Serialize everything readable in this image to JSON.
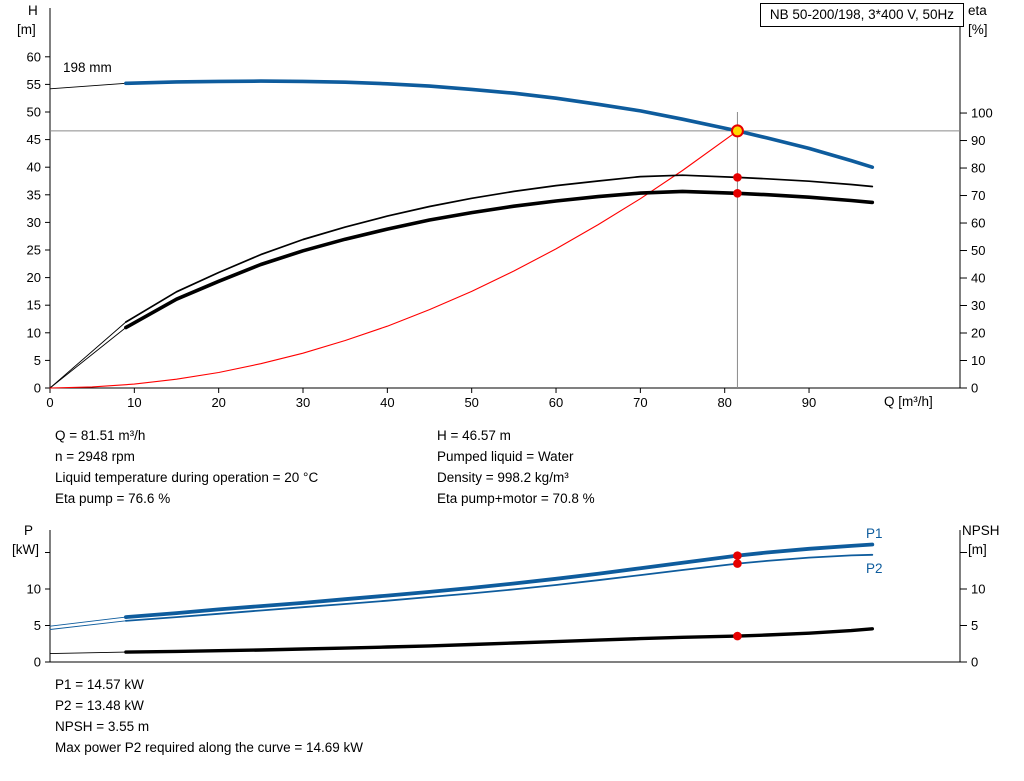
{
  "title_box": "NB 50-200/198, 3*400 V, 50Hz",
  "axes": {
    "h": "H",
    "h_unit": "[m]",
    "eta": "eta",
    "eta_unit": "[%]",
    "q": "Q [m³/h]",
    "p": "P",
    "p_unit": "[kW]",
    "npsh": "NPSH",
    "npsh_unit": "[m]"
  },
  "top_chart": {
    "impeller_label": "198 mm"
  },
  "bottom_chart": {
    "p1_label": "P1",
    "p2_label": "P2"
  },
  "info": {
    "left": [
      "Q = 81.51 m³/h",
      "n = 2948 rpm",
      "Liquid temperature during operation = 20 °C",
      "Eta pump = 76.6 %"
    ],
    "right": [
      "H = 46.57 m",
      "Pumped liquid = Water",
      "Density = 998.2 kg/m³",
      "Eta pump+motor = 70.8 %"
    ]
  },
  "results": [
    "P1 = 14.57 kW",
    "P2 = 13.48 kW",
    "NPSH = 3.55 m",
    "Max power P2 required along the curve = 14.69 kW"
  ],
  "colors": {
    "curve_blue": "#0e5c9d",
    "curve_black": "#000000",
    "system_red": "#ff0000",
    "dot_red": "#e60000",
    "duty_yellow": "#ffd800",
    "crosshair_gray": "#8a8a8a"
  },
  "chart_data": [
    {
      "type": "line",
      "title": "NB 50-200/198, 3*400 V, 50Hz",
      "xlabel": "Q [m³/h]",
      "ylabel_left": "H [m]",
      "ylabel_right": "eta [%]",
      "xlim": [
        0,
        107.9
      ],
      "ylim_left": [
        0,
        68.84
      ],
      "ylim_right": [
        0,
        138.2
      ],
      "x_ticks": [
        0,
        10,
        20,
        30,
        40,
        50,
        60,
        70,
        80,
        90
      ],
      "left_ticks": [
        0,
        5,
        10,
        15,
        20,
        25,
        30,
        35,
        40,
        45,
        50,
        55,
        60
      ],
      "right_ticks": [
        0,
        10,
        20,
        30,
        40,
        50,
        60,
        70,
        80,
        90,
        100
      ],
      "grid": false,
      "crosshair": {
        "x": 81.51,
        "x_top": 50.0,
        "h": 46.57,
        "color": "#8a8a8a"
      },
      "series": [
        {
          "name": "head-curve-leader",
          "axis": "left",
          "color": "#000000",
          "width": 0.9,
          "points": [
            [
              0,
              54.2
            ],
            [
              9,
              55.2
            ]
          ]
        },
        {
          "name": "eta-pump-leader",
          "axis": "right",
          "color": "#000000",
          "width": 0.9,
          "points": [
            [
              0,
              0
            ],
            [
              9,
              24
            ]
          ]
        },
        {
          "name": "eta-pump-motor-leader",
          "axis": "right",
          "color": "#000000",
          "width": 0.9,
          "points": [
            [
              0,
              0
            ],
            [
              9,
              22
            ]
          ]
        },
        {
          "name": "system-curve",
          "axis": "left",
          "color": "#ff0000",
          "width": 1.1,
          "points": [
            [
              0,
              0
            ],
            [
              5,
              0.2
            ],
            [
              10,
              0.7
            ],
            [
              15,
              1.6
            ],
            [
              20,
              2.8
            ],
            [
              25,
              4.4
            ],
            [
              30,
              6.3
            ],
            [
              35,
              8.6
            ],
            [
              40,
              11.2
            ],
            [
              45,
              14.2
            ],
            [
              50,
              17.5
            ],
            [
              55,
              21.2
            ],
            [
              60,
              25.2
            ],
            [
              65,
              29.6
            ],
            [
              70,
              34.3
            ],
            [
              75,
              39.4
            ],
            [
              81.51,
              46.57
            ]
          ]
        },
        {
          "name": "head-curve-198mm",
          "axis": "left",
          "color": "#0e5c9d",
          "width": 3.6,
          "points": [
            [
              9,
              55.2
            ],
            [
              15,
              55.45
            ],
            [
              20,
              55.55
            ],
            [
              25,
              55.6
            ],
            [
              30,
              55.55
            ],
            [
              35,
              55.4
            ],
            [
              40,
              55.1
            ],
            [
              45,
              54.7
            ],
            [
              50,
              54.1
            ],
            [
              55,
              53.4
            ],
            [
              60,
              52.5
            ],
            [
              65,
              51.4
            ],
            [
              70,
              50.2
            ],
            [
              75,
              48.7
            ],
            [
              81.51,
              46.57
            ],
            [
              85,
              45.3
            ],
            [
              90,
              43.4
            ],
            [
              95,
              41.2
            ],
            [
              97.5,
              40.0
            ]
          ]
        },
        {
          "name": "eta-pump-curve",
          "axis": "right",
          "color": "#000000",
          "width": 1.7,
          "points": [
            [
              9,
              24
            ],
            [
              15,
              35
            ],
            [
              20,
              42
            ],
            [
              25,
              48.5
            ],
            [
              30,
              54
            ],
            [
              35,
              58.5
            ],
            [
              40,
              62.5
            ],
            [
              45,
              66
            ],
            [
              50,
              69
            ],
            [
              55,
              71.5
            ],
            [
              60,
              73.6
            ],
            [
              65,
              75.3
            ],
            [
              70,
              76.9
            ],
            [
              75,
              77.4
            ],
            [
              81.51,
              76.6
            ],
            [
              85,
              76.1
            ],
            [
              90,
              75.2
            ],
            [
              95,
              74.0
            ],
            [
              97.5,
              73.3
            ]
          ]
        },
        {
          "name": "eta-pump-motor-curve",
          "axis": "right",
          "color": "#000000",
          "width": 3.6,
          "points": [
            [
              9,
              22
            ],
            [
              15,
              32.3
            ],
            [
              20,
              38.8
            ],
            [
              25,
              44.9
            ],
            [
              30,
              49.9
            ],
            [
              35,
              54.1
            ],
            [
              40,
              57.8
            ],
            [
              45,
              61.1
            ],
            [
              50,
              63.8
            ],
            [
              55,
              66.1
            ],
            [
              60,
              68.0
            ],
            [
              65,
              69.6
            ],
            [
              70,
              70.9
            ],
            [
              75,
              71.5
            ],
            [
              81.51,
              70.8
            ],
            [
              85,
              70.3
            ],
            [
              90,
              69.4
            ],
            [
              95,
              68.2
            ],
            [
              97.5,
              67.5
            ]
          ]
        }
      ],
      "markers": [
        {
          "name": "eta-pump-operating-dot",
          "axis": "right",
          "q": 81.51,
          "v": 76.6,
          "r": 4.3,
          "fill": "#e60000"
        },
        {
          "name": "eta-pump-motor-operating-dot",
          "axis": "right",
          "q": 81.51,
          "v": 70.8,
          "r": 4.3,
          "fill": "#e60000"
        },
        {
          "name": "duty-point-marker",
          "axis": "left",
          "q": 81.51,
          "v": 46.57,
          "r": 5.5,
          "fill": "#ffd800",
          "stroke": "#e60000",
          "sw": 2
        }
      ]
    },
    {
      "type": "line",
      "title": "Power and NPSH curves",
      "xlabel": "Q [m³/h]",
      "ylabel_left": "P [kW]",
      "ylabel_right": "NPSH [m]",
      "xlim": [
        0,
        107.9
      ],
      "ylim_left": [
        0,
        18.08
      ],
      "ylim_right": [
        0,
        18.08
      ],
      "x_ticks": [],
      "left_ticks": [
        0,
        5,
        10,
        {
          "v": 15,
          "label": ""
        }
      ],
      "right_ticks": [
        0,
        5,
        10,
        {
          "v": 15,
          "label": ""
        }
      ],
      "grid": false,
      "series": [
        {
          "name": "p1-leader",
          "axis": "left",
          "color": "#0e5c9d",
          "width": 0.9,
          "points": [
            [
              0,
              4.9
            ],
            [
              9,
              6.15
            ]
          ]
        },
        {
          "name": "p2-leader",
          "axis": "left",
          "color": "#0e5c9d",
          "width": 0.9,
          "points": [
            [
              0,
              4.45
            ],
            [
              9,
              5.65
            ]
          ]
        },
        {
          "name": "npsh-leader",
          "axis": "right",
          "color": "#000000",
          "width": 0.9,
          "points": [
            [
              0,
              1.15
            ],
            [
              9,
              1.35
            ]
          ]
        },
        {
          "name": "p1-curve",
          "axis": "left",
          "color": "#0e5c9d",
          "width": 3.8,
          "points": [
            [
              9,
              6.15
            ],
            [
              15,
              6.7
            ],
            [
              20,
              7.2
            ],
            [
              25,
              7.65
            ],
            [
              30,
              8.1
            ],
            [
              35,
              8.6
            ],
            [
              40,
              9.1
            ],
            [
              45,
              9.6
            ],
            [
              50,
              10.15
            ],
            [
              55,
              10.75
            ],
            [
              60,
              11.4
            ],
            [
              65,
              12.1
            ],
            [
              70,
              12.85
            ],
            [
              75,
              13.6
            ],
            [
              81.51,
              14.57
            ],
            [
              85,
              15.0
            ],
            [
              90,
              15.5
            ],
            [
              95,
              15.9
            ],
            [
              97.5,
              16.1
            ]
          ]
        },
        {
          "name": "p2-curve",
          "axis": "left",
          "color": "#0e5c9d",
          "width": 1.8,
          "points": [
            [
              9,
              5.65
            ],
            [
              15,
              6.15
            ],
            [
              20,
              6.6
            ],
            [
              25,
              7.05
            ],
            [
              30,
              7.5
            ],
            [
              35,
              7.95
            ],
            [
              40,
              8.4
            ],
            [
              45,
              8.9
            ],
            [
              50,
              9.4
            ],
            [
              55,
              9.95
            ],
            [
              60,
              10.55
            ],
            [
              65,
              11.2
            ],
            [
              70,
              11.9
            ],
            [
              75,
              12.6
            ],
            [
              81.51,
              13.48
            ],
            [
              85,
              13.85
            ],
            [
              90,
              14.3
            ],
            [
              95,
              14.6
            ],
            [
              97.5,
              14.69
            ]
          ]
        },
        {
          "name": "npsh-curve",
          "axis": "right",
          "color": "#000000",
          "width": 3.4,
          "points": [
            [
              9,
              1.35
            ],
            [
              15,
              1.45
            ],
            [
              20,
              1.55
            ],
            [
              25,
              1.65
            ],
            [
              30,
              1.78
            ],
            [
              35,
              1.9
            ],
            [
              40,
              2.05
            ],
            [
              45,
              2.2
            ],
            [
              50,
              2.4
            ],
            [
              55,
              2.6
            ],
            [
              60,
              2.8
            ],
            [
              65,
              3.0
            ],
            [
              70,
              3.2
            ],
            [
              75,
              3.38
            ],
            [
              81.51,
              3.55
            ],
            [
              85,
              3.7
            ],
            [
              90,
              3.95
            ],
            [
              95,
              4.3
            ],
            [
              97.5,
              4.55
            ]
          ]
        }
      ],
      "markers": [
        {
          "name": "p1-operating-dot",
          "axis": "left",
          "q": 81.51,
          "v": 14.57,
          "r": 4.3,
          "fill": "#e60000"
        },
        {
          "name": "p2-operating-dot",
          "axis": "left",
          "q": 81.51,
          "v": 13.48,
          "r": 4.3,
          "fill": "#e60000"
        },
        {
          "name": "npsh-operating-dot",
          "axis": "right",
          "q": 81.51,
          "v": 3.55,
          "r": 4.3,
          "fill": "#e60000"
        }
      ]
    }
  ]
}
